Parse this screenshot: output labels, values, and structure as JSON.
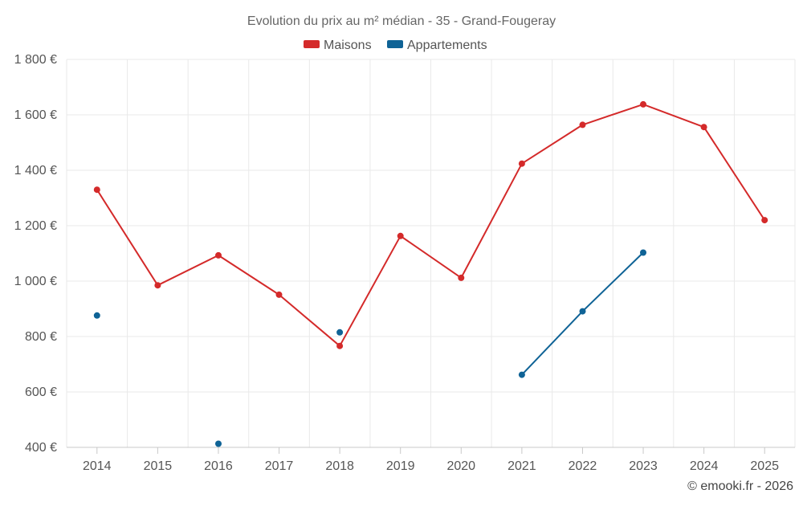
{
  "chart_data": {
    "type": "line",
    "title": "Evolution du prix au m² médian - 35 - Grand-Fougeray",
    "categories": [
      "2014",
      "2015",
      "2016",
      "2017",
      "2018",
      "2019",
      "2020",
      "2021",
      "2022",
      "2023",
      "2024",
      "2025"
    ],
    "ylim": [
      400,
      1800
    ],
    "yticks": [
      400,
      600,
      800,
      1000,
      1200,
      1400,
      1600,
      1800
    ],
    "ytick_labels": [
      "400 €",
      "600 €",
      "800 €",
      "1 000 €",
      "1 200 €",
      "1 400 €",
      "1 600 €",
      "1 800 €"
    ],
    "grid": true,
    "legend_position": "top-center",
    "series": [
      {
        "name": "Maisons",
        "color": "#d42a2a",
        "values": [
          1330,
          985,
          1093,
          951,
          766,
          1163,
          1012,
          1424,
          1564,
          1638,
          1556,
          1220
        ]
      },
      {
        "name": "Appartements",
        "color": "#0f6396",
        "values": [
          876,
          null,
          413,
          null,
          815,
          null,
          null,
          662,
          891,
          1103,
          null,
          null
        ]
      }
    ],
    "credit": "© emooki.fr - 2026"
  }
}
